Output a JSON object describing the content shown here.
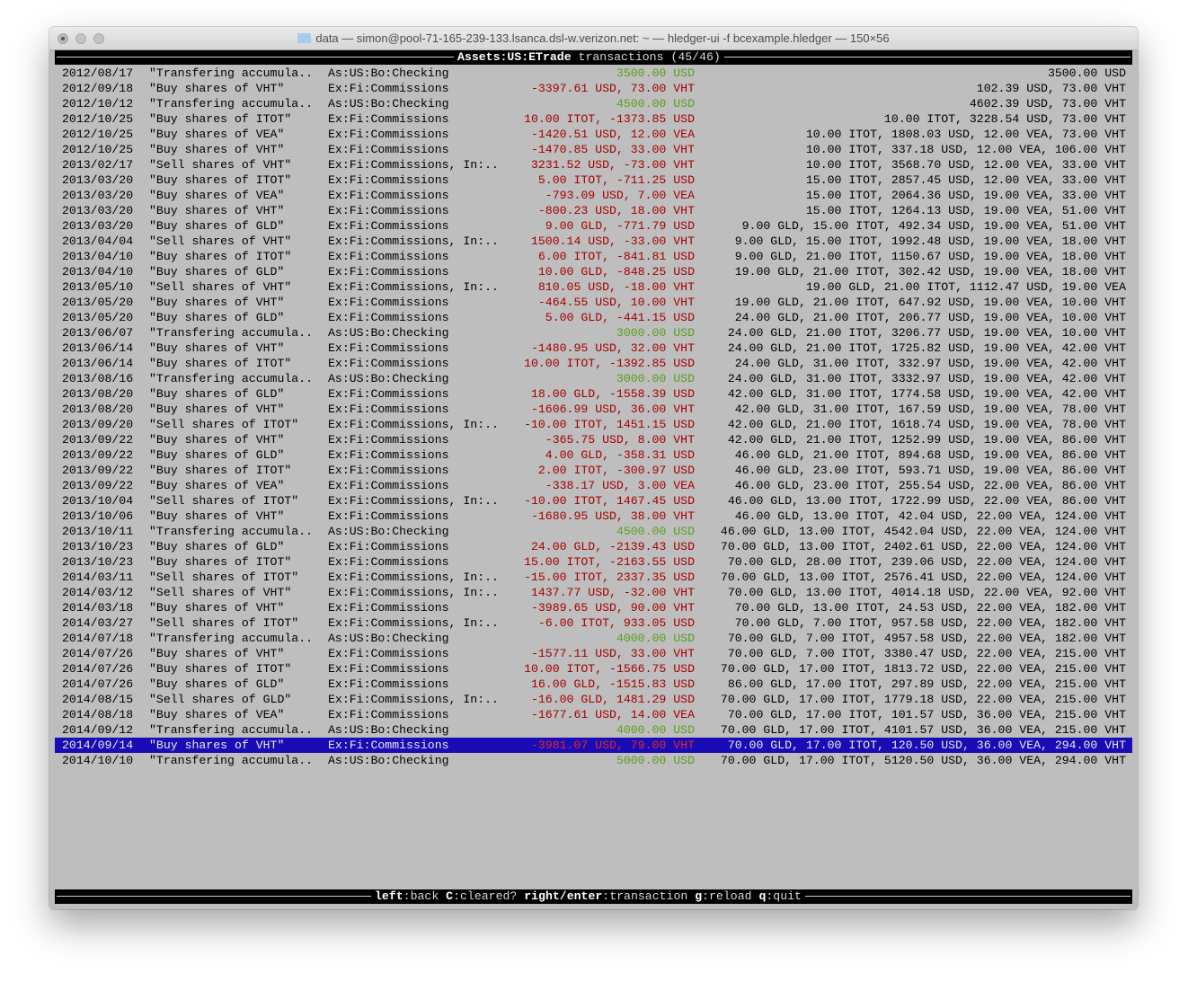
{
  "window": {
    "title": "data — simon@pool-71-165-239-133.lsanca.dsl-w.verizon.net: ~ — hledger-ui -f bcexample.hledger — 150×56",
    "folder_icon": "folder-icon"
  },
  "header": {
    "account": "Assets:US:ETrade",
    "suffix": "transactions (45/46)"
  },
  "footer": {
    "keys": [
      {
        "key": "left",
        "action": "back"
      },
      {
        "key": "C",
        "action": "cleared?"
      },
      {
        "key": "right/enter",
        "action": "transaction"
      },
      {
        "key": "g",
        "action": "reload"
      },
      {
        "key": "q",
        "action": "quit"
      }
    ]
  },
  "colors": {
    "background": "#bebebe",
    "amount_positive": "#5a9e1e",
    "amount_negative": "#a40000",
    "amount_negative_selected": "#e02a2a",
    "selection": "#1a0cb4"
  },
  "selected_index": 44,
  "rows": [
    {
      "date": "2012/08/17",
      "desc": "\"Transfering accumula..",
      "account": "As:US:Bo:Checking",
      "amount": "3500.00 USD",
      "balance": "3500.00 USD"
    },
    {
      "date": "2012/09/18",
      "desc": "\"Buy shares of VHT\"",
      "account": "Ex:Fi:Commissions",
      "amount": "-3397.61 USD, 73.00 VHT",
      "balance": "102.39 USD, 73.00 VHT"
    },
    {
      "date": "2012/10/12",
      "desc": "\"Transfering accumula..",
      "account": "As:US:Bo:Checking",
      "amount": "4500.00 USD",
      "balance": "4602.39 USD, 73.00 VHT"
    },
    {
      "date": "2012/10/25",
      "desc": "\"Buy shares of ITOT\"",
      "account": "Ex:Fi:Commissions",
      "amount": "10.00 ITOT, -1373.85 USD",
      "balance": "10.00 ITOT, 3228.54 USD, 73.00 VHT"
    },
    {
      "date": "2012/10/25",
      "desc": "\"Buy shares of VEA\"",
      "account": "Ex:Fi:Commissions",
      "amount": "-1420.51 USD, 12.00 VEA",
      "balance": "10.00 ITOT, 1808.03 USD, 12.00 VEA, 73.00 VHT"
    },
    {
      "date": "2012/10/25",
      "desc": "\"Buy shares of VHT\"",
      "account": "Ex:Fi:Commissions",
      "amount": "-1470.85 USD, 33.00 VHT",
      "balance": "10.00 ITOT, 337.18 USD, 12.00 VEA, 106.00 VHT"
    },
    {
      "date": "2013/02/17",
      "desc": "\"Sell shares of VHT\"",
      "account": "Ex:Fi:Commissions, In:..",
      "amount": "3231.52 USD, -73.00 VHT",
      "balance": "10.00 ITOT, 3568.70 USD, 12.00 VEA, 33.00 VHT"
    },
    {
      "date": "2013/03/20",
      "desc": "\"Buy shares of ITOT\"",
      "account": "Ex:Fi:Commissions",
      "amount": "5.00 ITOT, -711.25 USD",
      "balance": "15.00 ITOT, 2857.45 USD, 12.00 VEA, 33.00 VHT"
    },
    {
      "date": "2013/03/20",
      "desc": "\"Buy shares of VEA\"",
      "account": "Ex:Fi:Commissions",
      "amount": "-793.09 USD, 7.00 VEA",
      "balance": "15.00 ITOT, 2064.36 USD, 19.00 VEA, 33.00 VHT"
    },
    {
      "date": "2013/03/20",
      "desc": "\"Buy shares of VHT\"",
      "account": "Ex:Fi:Commissions",
      "amount": "-800.23 USD, 18.00 VHT",
      "balance": "15.00 ITOT, 1264.13 USD, 19.00 VEA, 51.00 VHT"
    },
    {
      "date": "2013/03/20",
      "desc": "\"Buy shares of GLD\"",
      "account": "Ex:Fi:Commissions",
      "amount": "9.00 GLD, -771.79 USD",
      "balance": "9.00 GLD, 15.00 ITOT, 492.34 USD, 19.00 VEA, 51.00 VHT"
    },
    {
      "date": "2013/04/04",
      "desc": "\"Sell shares of VHT\"",
      "account": "Ex:Fi:Commissions, In:..",
      "amount": "1500.14 USD, -33.00 VHT",
      "balance": "9.00 GLD, 15.00 ITOT, 1992.48 USD, 19.00 VEA, 18.00 VHT"
    },
    {
      "date": "2013/04/10",
      "desc": "\"Buy shares of ITOT\"",
      "account": "Ex:Fi:Commissions",
      "amount": "6.00 ITOT, -841.81 USD",
      "balance": "9.00 GLD, 21.00 ITOT, 1150.67 USD, 19.00 VEA, 18.00 VHT"
    },
    {
      "date": "2013/04/10",
      "desc": "\"Buy shares of GLD\"",
      "account": "Ex:Fi:Commissions",
      "amount": "10.00 GLD, -848.25 USD",
      "balance": "19.00 GLD, 21.00 ITOT, 302.42 USD, 19.00 VEA, 18.00 VHT"
    },
    {
      "date": "2013/05/10",
      "desc": "\"Sell shares of VHT\"",
      "account": "Ex:Fi:Commissions, In:..",
      "amount": "810.05 USD, -18.00 VHT",
      "balance": "19.00 GLD, 21.00 ITOT, 1112.47 USD, 19.00 VEA"
    },
    {
      "date": "2013/05/20",
      "desc": "\"Buy shares of VHT\"",
      "account": "Ex:Fi:Commissions",
      "amount": "-464.55 USD, 10.00 VHT",
      "balance": "19.00 GLD, 21.00 ITOT, 647.92 USD, 19.00 VEA, 10.00 VHT"
    },
    {
      "date": "2013/05/20",
      "desc": "\"Buy shares of GLD\"",
      "account": "Ex:Fi:Commissions",
      "amount": "5.00 GLD, -441.15 USD",
      "balance": "24.00 GLD, 21.00 ITOT, 206.77 USD, 19.00 VEA, 10.00 VHT"
    },
    {
      "date": "2013/06/07",
      "desc": "\"Transfering accumula..",
      "account": "As:US:Bo:Checking",
      "amount": "3000.00 USD",
      "balance": "24.00 GLD, 21.00 ITOT, 3206.77 USD, 19.00 VEA, 10.00 VHT"
    },
    {
      "date": "2013/06/14",
      "desc": "\"Buy shares of VHT\"",
      "account": "Ex:Fi:Commissions",
      "amount": "-1480.95 USD, 32.00 VHT",
      "balance": "24.00 GLD, 21.00 ITOT, 1725.82 USD, 19.00 VEA, 42.00 VHT"
    },
    {
      "date": "2013/06/14",
      "desc": "\"Buy shares of ITOT\"",
      "account": "Ex:Fi:Commissions",
      "amount": "10.00 ITOT, -1392.85 USD",
      "balance": "24.00 GLD, 31.00 ITOT, 332.97 USD, 19.00 VEA, 42.00 VHT"
    },
    {
      "date": "2013/08/16",
      "desc": "\"Transfering accumula..",
      "account": "As:US:Bo:Checking",
      "amount": "3000.00 USD",
      "balance": "24.00 GLD, 31.00 ITOT, 3332.97 USD, 19.00 VEA, 42.00 VHT"
    },
    {
      "date": "2013/08/20",
      "desc": "\"Buy shares of GLD\"",
      "account": "Ex:Fi:Commissions",
      "amount": "18.00 GLD, -1558.39 USD",
      "balance": "42.00 GLD, 31.00 ITOT, 1774.58 USD, 19.00 VEA, 42.00 VHT"
    },
    {
      "date": "2013/08/20",
      "desc": "\"Buy shares of VHT\"",
      "account": "Ex:Fi:Commissions",
      "amount": "-1606.99 USD, 36.00 VHT",
      "balance": "42.00 GLD, 31.00 ITOT, 167.59 USD, 19.00 VEA, 78.00 VHT"
    },
    {
      "date": "2013/09/20",
      "desc": "\"Sell shares of ITOT\"",
      "account": "Ex:Fi:Commissions, In:..",
      "amount": "-10.00 ITOT, 1451.15 USD",
      "balance": "42.00 GLD, 21.00 ITOT, 1618.74 USD, 19.00 VEA, 78.00 VHT"
    },
    {
      "date": "2013/09/22",
      "desc": "\"Buy shares of VHT\"",
      "account": "Ex:Fi:Commissions",
      "amount": "-365.75 USD, 8.00 VHT",
      "balance": "42.00 GLD, 21.00 ITOT, 1252.99 USD, 19.00 VEA, 86.00 VHT"
    },
    {
      "date": "2013/09/22",
      "desc": "\"Buy shares of GLD\"",
      "account": "Ex:Fi:Commissions",
      "amount": "4.00 GLD, -358.31 USD",
      "balance": "46.00 GLD, 21.00 ITOT, 894.68 USD, 19.00 VEA, 86.00 VHT"
    },
    {
      "date": "2013/09/22",
      "desc": "\"Buy shares of ITOT\"",
      "account": "Ex:Fi:Commissions",
      "amount": "2.00 ITOT, -300.97 USD",
      "balance": "46.00 GLD, 23.00 ITOT, 593.71 USD, 19.00 VEA, 86.00 VHT"
    },
    {
      "date": "2013/09/22",
      "desc": "\"Buy shares of VEA\"",
      "account": "Ex:Fi:Commissions",
      "amount": "-338.17 USD, 3.00 VEA",
      "balance": "46.00 GLD, 23.00 ITOT, 255.54 USD, 22.00 VEA, 86.00 VHT"
    },
    {
      "date": "2013/10/04",
      "desc": "\"Sell shares of ITOT\"",
      "account": "Ex:Fi:Commissions, In:..",
      "amount": "-10.00 ITOT, 1467.45 USD",
      "balance": "46.00 GLD, 13.00 ITOT, 1722.99 USD, 22.00 VEA, 86.00 VHT"
    },
    {
      "date": "2013/10/06",
      "desc": "\"Buy shares of VHT\"",
      "account": "Ex:Fi:Commissions",
      "amount": "-1680.95 USD, 38.00 VHT",
      "balance": "46.00 GLD, 13.00 ITOT, 42.04 USD, 22.00 VEA, 124.00 VHT"
    },
    {
      "date": "2013/10/11",
      "desc": "\"Transfering accumula..",
      "account": "As:US:Bo:Checking",
      "amount": "4500.00 USD",
      "balance": "46.00 GLD, 13.00 ITOT, 4542.04 USD, 22.00 VEA, 124.00 VHT"
    },
    {
      "date": "2013/10/23",
      "desc": "\"Buy shares of GLD\"",
      "account": "Ex:Fi:Commissions",
      "amount": "24.00 GLD, -2139.43 USD",
      "balance": "70.00 GLD, 13.00 ITOT, 2402.61 USD, 22.00 VEA, 124.00 VHT"
    },
    {
      "date": "2013/10/23",
      "desc": "\"Buy shares of ITOT\"",
      "account": "Ex:Fi:Commissions",
      "amount": "15.00 ITOT, -2163.55 USD",
      "balance": "70.00 GLD, 28.00 ITOT, 239.06 USD, 22.00 VEA, 124.00 VHT"
    },
    {
      "date": "2014/03/11",
      "desc": "\"Sell shares of ITOT\"",
      "account": "Ex:Fi:Commissions, In:..",
      "amount": "-15.00 ITOT, 2337.35 USD",
      "balance": "70.00 GLD, 13.00 ITOT, 2576.41 USD, 22.00 VEA, 124.00 VHT"
    },
    {
      "date": "2014/03/12",
      "desc": "\"Sell shares of VHT\"",
      "account": "Ex:Fi:Commissions, In:..",
      "amount": "1437.77 USD, -32.00 VHT",
      "balance": "70.00 GLD, 13.00 ITOT, 4014.18 USD, 22.00 VEA, 92.00 VHT"
    },
    {
      "date": "2014/03/18",
      "desc": "\"Buy shares of VHT\"",
      "account": "Ex:Fi:Commissions",
      "amount": "-3989.65 USD, 90.00 VHT",
      "balance": "70.00 GLD, 13.00 ITOT, 24.53 USD, 22.00 VEA, 182.00 VHT"
    },
    {
      "date": "2014/03/27",
      "desc": "\"Sell shares of ITOT\"",
      "account": "Ex:Fi:Commissions, In:..",
      "amount": "-6.00 ITOT, 933.05 USD",
      "balance": "70.00 GLD, 7.00 ITOT, 957.58 USD, 22.00 VEA, 182.00 VHT"
    },
    {
      "date": "2014/07/18",
      "desc": "\"Transfering accumula..",
      "account": "As:US:Bo:Checking",
      "amount": "4000.00 USD",
      "balance": "70.00 GLD, 7.00 ITOT, 4957.58 USD, 22.00 VEA, 182.00 VHT"
    },
    {
      "date": "2014/07/26",
      "desc": "\"Buy shares of VHT\"",
      "account": "Ex:Fi:Commissions",
      "amount": "-1577.11 USD, 33.00 VHT",
      "balance": "70.00 GLD, 7.00 ITOT, 3380.47 USD, 22.00 VEA, 215.00 VHT"
    },
    {
      "date": "2014/07/26",
      "desc": "\"Buy shares of ITOT\"",
      "account": "Ex:Fi:Commissions",
      "amount": "10.00 ITOT, -1566.75 USD",
      "balance": "70.00 GLD, 17.00 ITOT, 1813.72 USD, 22.00 VEA, 215.00 VHT"
    },
    {
      "date": "2014/07/26",
      "desc": "\"Buy shares of GLD\"",
      "account": "Ex:Fi:Commissions",
      "amount": "16.00 GLD, -1515.83 USD",
      "balance": "86.00 GLD, 17.00 ITOT, 297.89 USD, 22.00 VEA, 215.00 VHT"
    },
    {
      "date": "2014/08/15",
      "desc": "\"Sell shares of GLD\"",
      "account": "Ex:Fi:Commissions, In:..",
      "amount": "-16.00 GLD, 1481.29 USD",
      "balance": "70.00 GLD, 17.00 ITOT, 1779.18 USD, 22.00 VEA, 215.00 VHT"
    },
    {
      "date": "2014/08/18",
      "desc": "\"Buy shares of VEA\"",
      "account": "Ex:Fi:Commissions",
      "amount": "-1677.61 USD, 14.00 VEA",
      "balance": "70.00 GLD, 17.00 ITOT, 101.57 USD, 36.00 VEA, 215.00 VHT"
    },
    {
      "date": "2014/09/12",
      "desc": "\"Transfering accumula..",
      "account": "As:US:Bo:Checking",
      "amount": "4000.00 USD",
      "balance": "70.00 GLD, 17.00 ITOT, 4101.57 USD, 36.00 VEA, 215.00 VHT"
    },
    {
      "date": "2014/09/14",
      "desc": "\"Buy shares of VHT\"",
      "account": "Ex:Fi:Commissions",
      "amount": "-3981.07 USD, 79.00 VHT",
      "balance": "70.00 GLD, 17.00 ITOT, 120.50 USD, 36.00 VEA, 294.00 VHT"
    },
    {
      "date": "2014/10/10",
      "desc": "\"Transfering accumula..",
      "account": "As:US:Bo:Checking",
      "amount": "5000.00 USD",
      "balance": "70.00 GLD, 17.00 ITOT, 5120.50 USD, 36.00 VEA, 294.00 VHT"
    }
  ]
}
